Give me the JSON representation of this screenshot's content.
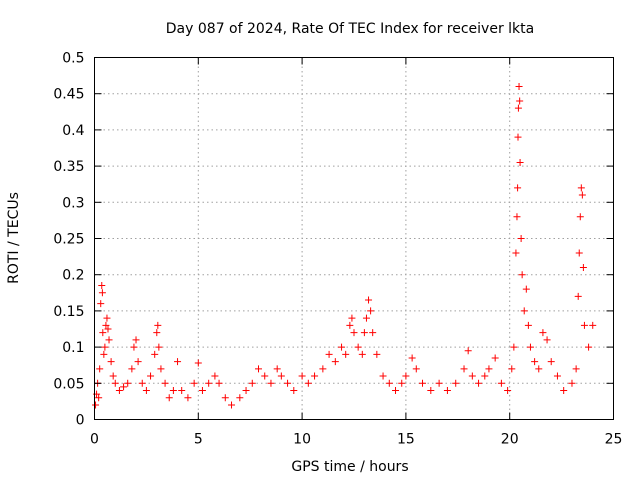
{
  "chart_data": {
    "type": "scatter",
    "title": "Day 087 of 2024, Rate Of TEC Index for receiver lkta",
    "xlabel": "GPS time / hours",
    "ylabel": "ROTI / TECUs",
    "xlim": [
      0,
      25
    ],
    "ylim": [
      0,
      0.5
    ],
    "grid": true,
    "marker": "+",
    "color": "#ff0000",
    "x_ticks": [
      0,
      5,
      10,
      15,
      20,
      25
    ],
    "x_tick_labels": [
      "0",
      "5",
      "10",
      "15",
      "20",
      "25"
    ],
    "y_ticks": [
      0,
      0.05,
      0.1,
      0.15,
      0.2,
      0.25,
      0.3,
      0.35,
      0.4,
      0.45,
      0.5
    ],
    "y_tick_labels": [
      "0",
      "0.05",
      "0.1",
      "0.15",
      "0.2",
      "0.25",
      "0.3",
      "0.35",
      "0.4",
      "0.45",
      "0.5"
    ],
    "series": [
      {
        "name": "ROTI",
        "points": [
          [
            0.05,
            0.02
          ],
          [
            0.1,
            0.035
          ],
          [
            0.15,
            0.05
          ],
          [
            0.2,
            0.03
          ],
          [
            0.25,
            0.07
          ],
          [
            0.3,
            0.16
          ],
          [
            0.35,
            0.185
          ],
          [
            0.38,
            0.175
          ],
          [
            0.4,
            0.12
          ],
          [
            0.45,
            0.09
          ],
          [
            0.5,
            0.1
          ],
          [
            0.55,
            0.13
          ],
          [
            0.6,
            0.14
          ],
          [
            0.65,
            0.125
          ],
          [
            0.7,
            0.11
          ],
          [
            0.8,
            0.08
          ],
          [
            0.9,
            0.06
          ],
          [
            1.0,
            0.05
          ],
          [
            1.2,
            0.04
          ],
          [
            1.4,
            0.045
          ],
          [
            1.6,
            0.05
          ],
          [
            1.8,
            0.07
          ],
          [
            1.9,
            0.1
          ],
          [
            2.0,
            0.11
          ],
          [
            2.1,
            0.08
          ],
          [
            2.3,
            0.05
          ],
          [
            2.5,
            0.04
          ],
          [
            2.7,
            0.06
          ],
          [
            2.9,
            0.09
          ],
          [
            3.0,
            0.12
          ],
          [
            3.05,
            0.13
          ],
          [
            3.1,
            0.1
          ],
          [
            3.2,
            0.07
          ],
          [
            3.4,
            0.05
          ],
          [
            3.6,
            0.03
          ],
          [
            3.8,
            0.04
          ],
          [
            4.0,
            0.08
          ],
          [
            4.2,
            0.04
          ],
          [
            4.5,
            0.03
          ],
          [
            4.8,
            0.05
          ],
          [
            5.0,
            0.078
          ],
          [
            5.2,
            0.04
          ],
          [
            5.5,
            0.05
          ],
          [
            5.8,
            0.06
          ],
          [
            6.0,
            0.05
          ],
          [
            6.3,
            0.03
          ],
          [
            6.6,
            0.02
          ],
          [
            7.0,
            0.03
          ],
          [
            7.3,
            0.04
          ],
          [
            7.6,
            0.05
          ],
          [
            7.9,
            0.07
          ],
          [
            8.2,
            0.06
          ],
          [
            8.5,
            0.05
          ],
          [
            8.8,
            0.07
          ],
          [
            9.0,
            0.06
          ],
          [
            9.3,
            0.05
          ],
          [
            9.6,
            0.04
          ],
          [
            10.0,
            0.06
          ],
          [
            10.3,
            0.05
          ],
          [
            10.6,
            0.06
          ],
          [
            11.0,
            0.07
          ],
          [
            11.3,
            0.09
          ],
          [
            11.6,
            0.08
          ],
          [
            11.9,
            0.1
          ],
          [
            12.1,
            0.09
          ],
          [
            12.3,
            0.13
          ],
          [
            12.4,
            0.14
          ],
          [
            12.5,
            0.12
          ],
          [
            12.7,
            0.1
          ],
          [
            12.9,
            0.09
          ],
          [
            13.0,
            0.12
          ],
          [
            13.1,
            0.14
          ],
          [
            13.2,
            0.165
          ],
          [
            13.3,
            0.15
          ],
          [
            13.4,
            0.12
          ],
          [
            13.6,
            0.09
          ],
          [
            13.9,
            0.06
          ],
          [
            14.2,
            0.05
          ],
          [
            14.5,
            0.04
          ],
          [
            14.8,
            0.05
          ],
          [
            15.0,
            0.06
          ],
          [
            15.3,
            0.085
          ],
          [
            15.5,
            0.07
          ],
          [
            15.8,
            0.05
          ],
          [
            16.2,
            0.04
          ],
          [
            16.6,
            0.05
          ],
          [
            17.0,
            0.04
          ],
          [
            17.4,
            0.05
          ],
          [
            17.8,
            0.07
          ],
          [
            18.0,
            0.095
          ],
          [
            18.2,
            0.06
          ],
          [
            18.5,
            0.05
          ],
          [
            18.8,
            0.06
          ],
          [
            19.0,
            0.07
          ],
          [
            19.3,
            0.085
          ],
          [
            19.6,
            0.05
          ],
          [
            19.9,
            0.04
          ],
          [
            20.1,
            0.07
          ],
          [
            20.2,
            0.1
          ],
          [
            20.3,
            0.23
          ],
          [
            20.35,
            0.28
          ],
          [
            20.38,
            0.32
          ],
          [
            20.4,
            0.39
          ],
          [
            20.42,
            0.43
          ],
          [
            20.45,
            0.46
          ],
          [
            20.48,
            0.44
          ],
          [
            20.5,
            0.355
          ],
          [
            20.55,
            0.25
          ],
          [
            20.6,
            0.2
          ],
          [
            20.7,
            0.15
          ],
          [
            20.8,
            0.18
          ],
          [
            20.9,
            0.13
          ],
          [
            21.0,
            0.1
          ],
          [
            21.2,
            0.08
          ],
          [
            21.4,
            0.07
          ],
          [
            21.6,
            0.12
          ],
          [
            21.8,
            0.11
          ],
          [
            22.0,
            0.08
          ],
          [
            22.3,
            0.06
          ],
          [
            22.6,
            0.04
          ],
          [
            23.0,
            0.05
          ],
          [
            23.2,
            0.07
          ],
          [
            23.3,
            0.17
          ],
          [
            23.35,
            0.23
          ],
          [
            23.4,
            0.28
          ],
          [
            23.45,
            0.32
          ],
          [
            23.5,
            0.31
          ],
          [
            23.55,
            0.21
          ],
          [
            23.6,
            0.13
          ],
          [
            23.8,
            0.1
          ],
          [
            24.0,
            0.13
          ]
        ]
      }
    ]
  }
}
